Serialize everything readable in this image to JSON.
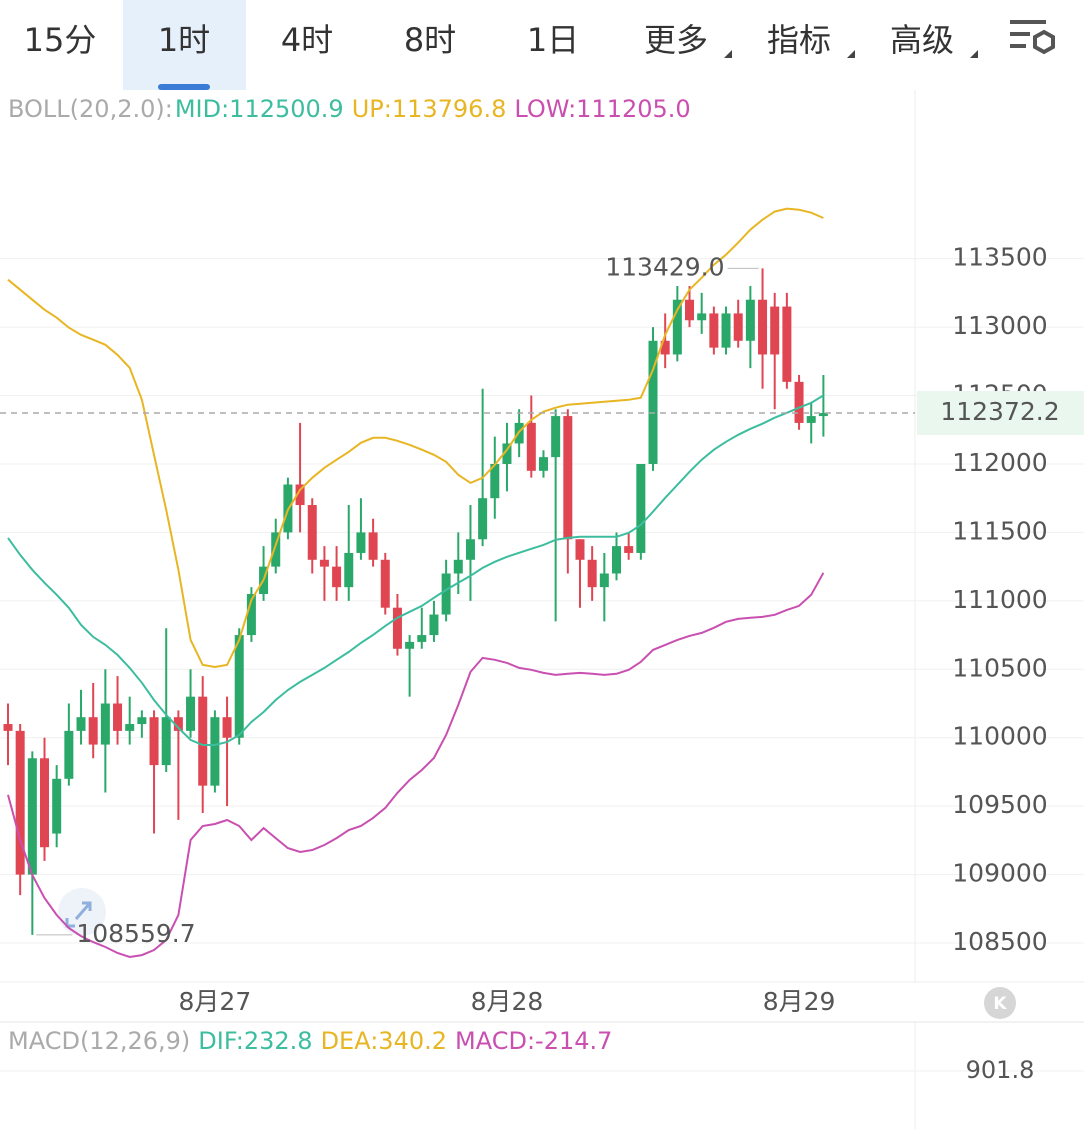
{
  "tabs": [
    "15分",
    "1时",
    "4时",
    "8时",
    "1日",
    "更多",
    "指标",
    "高级"
  ],
  "chart_data": {
    "type": "candlestick",
    "header": "BOLL(20,2.0):",
    "categories": [
      null,
      null,
      null,
      null,
      null,
      null,
      null,
      null,
      null,
      null,
      null,
      null,
      null,
      null,
      null,
      null,
      null,
      "8月27",
      null,
      null,
      null,
      null,
      null,
      null,
      null,
      null,
      null,
      null,
      null,
      null,
      null,
      null,
      null,
      null,
      null,
      null,
      null,
      null,
      null,
      null,
      null,
      "8月28",
      null,
      null,
      null,
      null,
      null,
      null,
      null,
      null,
      null,
      null,
      null,
      null,
      null,
      null,
      null,
      null,
      null,
      null,
      null,
      null,
      null,
      null,
      null,
      "8月29",
      null,
      null
    ],
    "open": [
      110100,
      110050,
      109000,
      109850,
      109300,
      109700,
      110050,
      110150,
      109950,
      110250,
      110050,
      110100,
      110150,
      109800,
      110150,
      110050,
      110300,
      109650,
      110150,
      110000,
      110750,
      111050,
      111250,
      111500,
      111850,
      111700,
      111300,
      111250,
      111100,
      111350,
      111500,
      111300,
      110950,
      110650,
      110700,
      110750,
      110900,
      111200,
      111300,
      111450,
      111750,
      112000,
      112150,
      112300,
      111950,
      112050,
      112350,
      111450,
      111300,
      111100,
      111200,
      111400,
      111350,
      112000,
      112900,
      112800,
      113200,
      113050,
      113100,
      112850,
      113100,
      112900,
      113200,
      113150,
      113150,
      112600,
      112300,
      112350
    ],
    "high": [
      110250,
      110100,
      109900,
      110000,
      109800,
      110250,
      110350,
      110400,
      110500,
      110450,
      110300,
      110200,
      110200,
      110800,
      110200,
      110500,
      110450,
      110200,
      110300,
      110800,
      111100,
      111400,
      111600,
      111900,
      112300,
      111750,
      111400,
      111400,
      111700,
      111750,
      111600,
      111350,
      111050,
      110750,
      110950,
      111000,
      111300,
      111500,
      111700,
      112550,
      112200,
      112300,
      112400,
      112500,
      112100,
      112400,
      112400,
      111450,
      111400,
      111350,
      111500,
      111500,
      112000,
      113000,
      113100,
      113300,
      113300,
      113250,
      113150,
      113150,
      113200,
      113300,
      113429,
      113250,
      113250,
      112650,
      112450,
      112650
    ],
    "low": [
      109800,
      108850,
      108559.7,
      109100,
      109200,
      109650,
      109950,
      109850,
      109600,
      109950,
      109950,
      110000,
      109300,
      109750,
      109400,
      110000,
      109450,
      109600,
      109500,
      109950,
      110700,
      111000,
      111200,
      111450,
      111500,
      111200,
      111000,
      111000,
      111000,
      111300,
      111250,
      110900,
      110600,
      110300,
      110650,
      110700,
      110850,
      111050,
      111000,
      111400,
      111600,
      111800,
      112050,
      111900,
      111900,
      110850,
      111200,
      110950,
      111000,
      110850,
      111150,
      111300,
      111300,
      111950,
      112700,
      112750,
      113000,
      112950,
      112800,
      112800,
      112850,
      112700,
      112550,
      112400,
      112550,
      112250,
      112150,
      112200
    ],
    "close": [
      110050,
      109000,
      109850,
      109200,
      109700,
      110050,
      110150,
      109950,
      110250,
      110050,
      110100,
      110150,
      109800,
      110150,
      110050,
      110300,
      109650,
      110150,
      110000,
      110750,
      111050,
      111250,
      111500,
      111850,
      111700,
      111300,
      111250,
      111100,
      111350,
      111500,
      111300,
      110950,
      110650,
      110700,
      110750,
      110900,
      111200,
      111300,
      111450,
      111750,
      112000,
      112150,
      112300,
      111950,
      112050,
      112350,
      111450,
      111300,
      111100,
      111200,
      111400,
      111350,
      112000,
      112900,
      112800,
      113200,
      113050,
      113100,
      112850,
      113100,
      112900,
      113200,
      112800,
      112800,
      112600,
      112300,
      112350,
      112372.2
    ],
    "up_color": "#2aa86a",
    "down_color": "#e04552",
    "bands": [
      {
        "label": "MID:112500.9",
        "color": "#3dbd9f",
        "values": [
          111460,
          111336,
          111227,
          111132,
          111044,
          110949,
          110825,
          110737,
          110678,
          110605,
          110510,
          110401,
          110276,
          110167,
          110072,
          109984,
          109947,
          109947,
          109969,
          110020,
          110115,
          110188,
          110276,
          110349,
          110408,
          110459,
          110510,
          110569,
          110627,
          110693,
          110751,
          110817,
          110876,
          110920,
          110963,
          111022,
          111080,
          111132,
          111183,
          111241,
          111285,
          111322,
          111351,
          111380,
          111409,
          111446,
          111460,
          111468,
          111468,
          111468,
          111468,
          111497,
          111555,
          111651,
          111753,
          111848,
          111943,
          112031,
          112104,
          112162,
          112213,
          112257,
          112294,
          112338,
          112374,
          112411,
          112447,
          112500.9
        ]
      },
      {
        "label": "UP:113796.8",
        "color": "#e8b523",
        "values": [
          113346,
          113273,
          113200,
          113127,
          113069,
          112996,
          112944,
          112908,
          112871,
          112798,
          112703,
          112469,
          112067,
          111665,
          111227,
          110715,
          110532,
          110517,
          110532,
          110715,
          111007,
          111154,
          111409,
          111665,
          111811,
          111899,
          111972,
          112031,
          112089,
          112155,
          112191,
          112191,
          112169,
          112140,
          112104,
          112067,
          112016,
          111921,
          111862,
          111899,
          111994,
          112104,
          112235,
          112323,
          112382,
          112411,
          112433,
          112440,
          112447,
          112455,
          112462,
          112469,
          112484,
          112689,
          112944,
          113127,
          113273,
          113361,
          113456,
          113529,
          113617,
          113712,
          113785,
          113844,
          113866,
          113858,
          113836,
          113796.8
        ]
      },
      {
        "label": "LOW:111205.0",
        "color": "#c94fb0",
        "values": [
          109582,
          109253,
          108997,
          108829,
          108705,
          108610,
          108551,
          108507,
          108471,
          108427,
          108398,
          108412,
          108449,
          108522,
          108705,
          109253,
          109355,
          109370,
          109399,
          109355,
          109253,
          109340,
          109267,
          109194,
          109165,
          109180,
          109216,
          109267,
          109326,
          109355,
          109414,
          109487,
          109597,
          109691,
          109764,
          109852,
          110020,
          110240,
          110481,
          110583,
          110569,
          110547,
          110510,
          110496,
          110474,
          110459,
          110467,
          110474,
          110467,
          110459,
          110467,
          110496,
          110554,
          110642,
          110678,
          110715,
          110744,
          110766,
          110803,
          110847,
          110868,
          110876,
          110883,
          110898,
          110934,
          110963,
          111044,
          111205.0
        ]
      }
    ],
    "high_marker": {
      "value": 113429,
      "label": "113429.0"
    },
    "low_marker": 108559.7,
    "last_price": 112372.2,
    "ylim": [
      108230,
      114440
    ],
    "yticks": [
      108500,
      109000,
      109500,
      110000,
      110500,
      111000,
      111500,
      112000,
      112500,
      113000,
      113500
    ],
    "grid": true
  },
  "macd": {
    "title": "MACD(12,26,9)",
    "dif": "DIF:232.8",
    "dea": "DEA:340.2",
    "macd": "MACD:-214.7",
    "top": "901.8"
  }
}
